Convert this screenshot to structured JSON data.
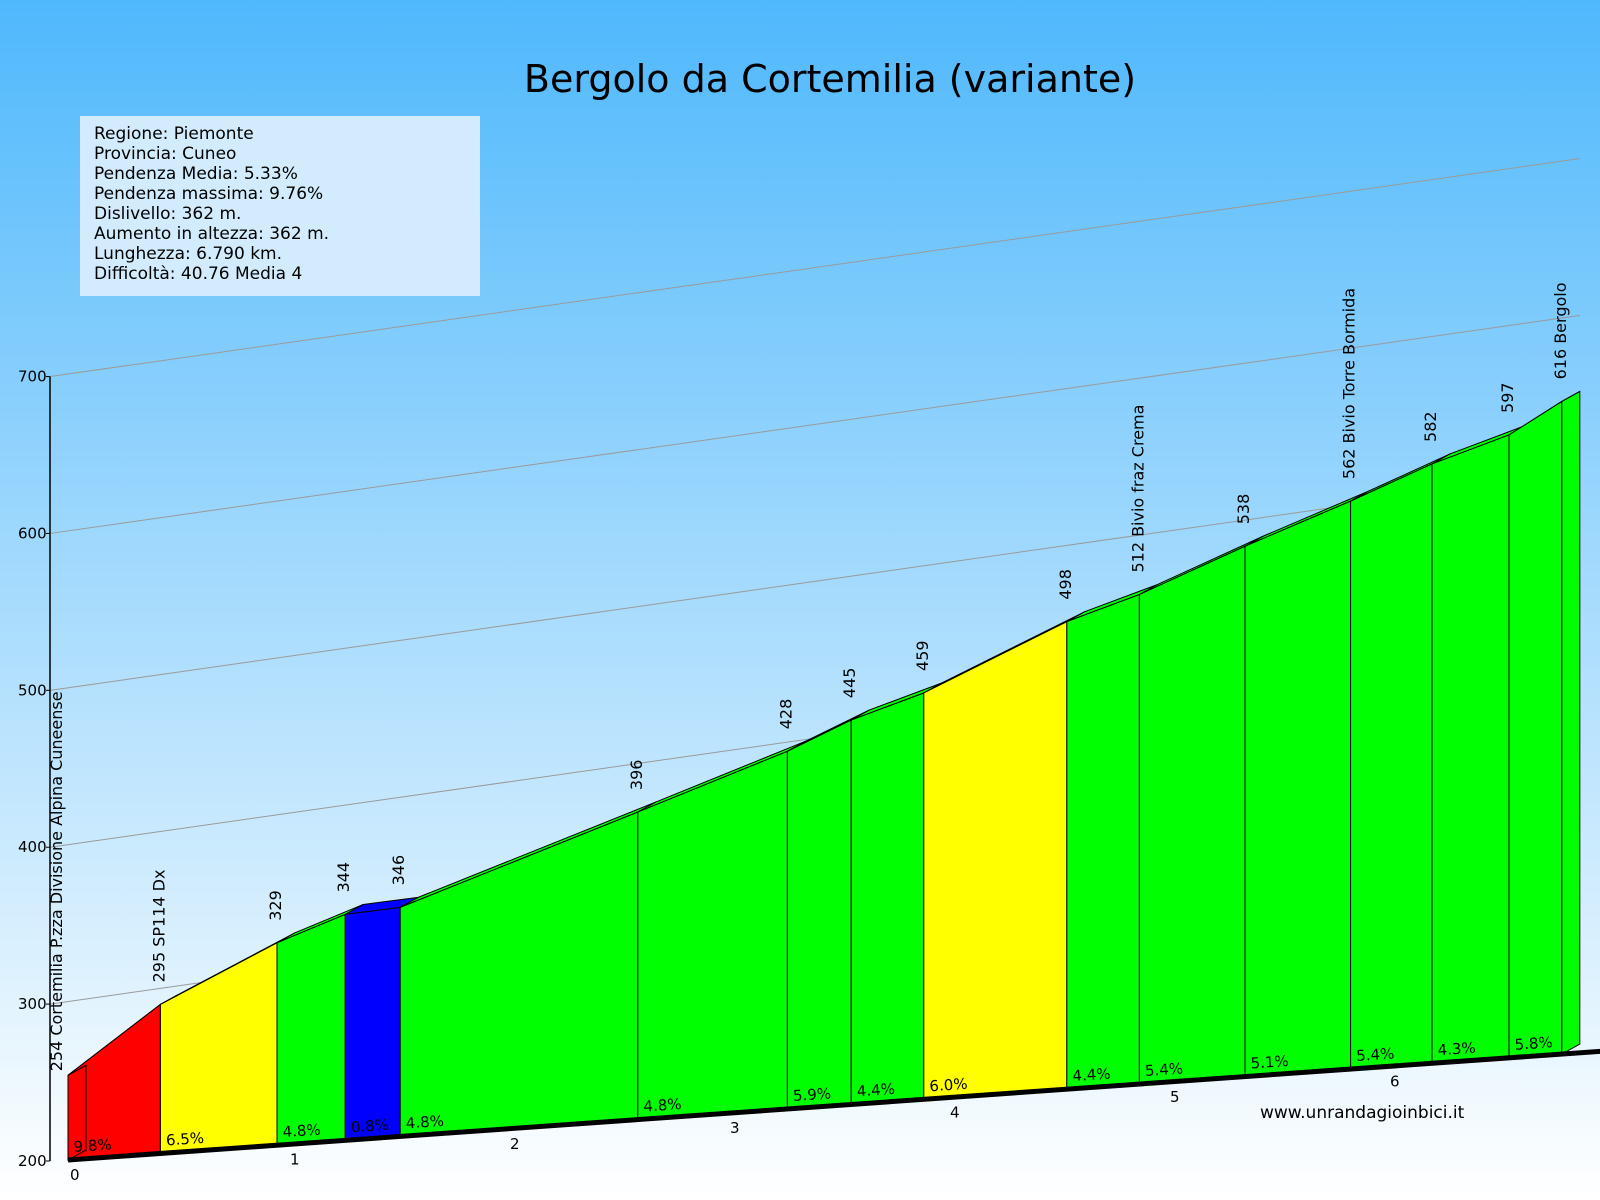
{
  "title": "Bergolo da Cortemilia (variante)",
  "info": [
    "Regione: Piemonte",
    "Provincia: Cuneo",
    "Pendenza Media: 5.33%",
    "Pendenza massima: 9.76%",
    "Dislivello:  362 m.",
    "Aumento in altezza:  362 m.",
    "Lunghezza: 6.790 km.",
    "Difficoltà: 40.76 Media 4"
  ],
  "website": "www.unrandagioinbici.it",
  "colors": {
    "sky_top": "#4fb8fc",
    "sky_bottom": "#dff2fe",
    "red": "#ff0000",
    "yellow": "#ffff00",
    "green": "#00ff00",
    "blue": "#0000ff"
  },
  "chart_data": {
    "type": "area",
    "title": "Bergolo da Cortemilia (variante)",
    "xlabel": "",
    "ylabel": "",
    "xlim": [
      0,
      6.79
    ],
    "ylim": [
      200,
      700
    ],
    "y_ticks": [
      200,
      300,
      400,
      500,
      600,
      700
    ],
    "x_ticks": [
      0,
      1,
      2,
      3,
      4,
      5,
      6
    ],
    "points": [
      {
        "km": 0.0,
        "elev": 254,
        "label": "254 Cortemilia P.zza Divisione Alpina Cuneense"
      },
      {
        "km": 0.42,
        "elev": 295,
        "label": "295 SP114 Dx"
      },
      {
        "km": 0.95,
        "elev": 329,
        "label": "329"
      },
      {
        "km": 1.26,
        "elev": 344,
        "label": "344"
      },
      {
        "km": 1.51,
        "elev": 346,
        "label": "346"
      },
      {
        "km": 2.59,
        "elev": 396,
        "label": "396"
      },
      {
        "km": 3.27,
        "elev": 428,
        "label": "428"
      },
      {
        "km": 3.56,
        "elev": 445,
        "label": "445"
      },
      {
        "km": 3.89,
        "elev": 459,
        "label": "459"
      },
      {
        "km": 4.54,
        "elev": 498,
        "label": "498"
      },
      {
        "km": 4.87,
        "elev": 512,
        "label": "512 Bivio fraz Crema"
      },
      {
        "km": 5.35,
        "elev": 538,
        "label": "538"
      },
      {
        "km": 5.83,
        "elev": 562,
        "label": "562 Bivio Torre Bormida"
      },
      {
        "km": 6.2,
        "elev": 582,
        "label": "582"
      },
      {
        "km": 6.55,
        "elev": 597,
        "label": "597"
      },
      {
        "km": 6.79,
        "elev": 616,
        "label": "616 Bergolo"
      }
    ],
    "segments": [
      {
        "grade": "9.8%",
        "color": "red"
      },
      {
        "grade": "6.5%",
        "color": "yellow"
      },
      {
        "grade": "4.8%",
        "color": "green"
      },
      {
        "grade": "0.8%",
        "color": "blue"
      },
      {
        "grade": "4.8%",
        "color": "green"
      },
      {
        "grade": "4.8%",
        "color": "green"
      },
      {
        "grade": "5.9%",
        "color": "green"
      },
      {
        "grade": "4.4%",
        "color": "green"
      },
      {
        "grade": "6.0%",
        "color": "yellow"
      },
      {
        "grade": "4.4%",
        "color": "green"
      },
      {
        "grade": "5.4%",
        "color": "green"
      },
      {
        "grade": "5.1%",
        "color": "green"
      },
      {
        "grade": "5.4%",
        "color": "green"
      },
      {
        "grade": "4.3%",
        "color": "green"
      },
      {
        "grade": "5.8%",
        "color": "green"
      }
    ],
    "grid": true
  }
}
